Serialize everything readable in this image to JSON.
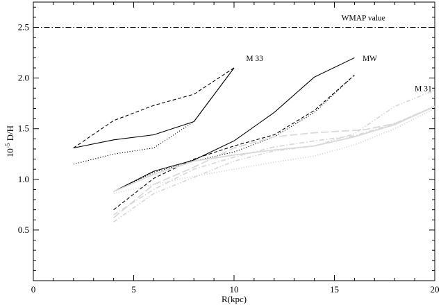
{
  "chart_data": {
    "type": "line",
    "title": "",
    "xlabel": "R(kpc)",
    "ylabel": "10^-5 D/H",
    "ylabel_prefix": "10",
    "ylabel_exponent": "-5",
    "ylabel_suffix": " D/H",
    "xlim": [
      0,
      20
    ],
    "ylim": [
      0,
      2.75
    ],
    "xticks": [
      0,
      5,
      10,
      15,
      20
    ],
    "yticks": [
      0.5,
      1.0,
      1.5,
      2.0,
      2.5
    ],
    "xtick_labels": [
      "0",
      "5",
      "10",
      "15",
      "20"
    ],
    "ytick_labels": [
      "0.5",
      "1.0",
      "1.5",
      "2.0",
      "2.5"
    ],
    "grid": false,
    "reference_line": {
      "y": 2.5,
      "label": "WMAP value",
      "color": "#000000",
      "style": "dashdot"
    },
    "annotations": [
      {
        "text": "M 33",
        "x": 10.6,
        "y": 2.17
      },
      {
        "text": "MW",
        "x": 16.4,
        "y": 2.17
      },
      {
        "text": "M 31",
        "x": 19.0,
        "y": 1.87
      }
    ],
    "series": [
      {
        "group": "M 33",
        "color": "#000000",
        "style": "solid",
        "x": [
          2,
          4,
          6,
          8,
          10
        ],
        "y": [
          1.31,
          1.39,
          1.44,
          1.57,
          2.1
        ]
      },
      {
        "group": "M 33",
        "color": "#000000",
        "style": "dashed",
        "x": [
          2,
          4,
          6,
          8,
          10
        ],
        "y": [
          1.31,
          1.58,
          1.73,
          1.84,
          2.1
        ]
      },
      {
        "group": "M 33",
        "color": "#000000",
        "style": "dotted",
        "x": [
          2,
          4,
          6,
          8,
          10
        ],
        "y": [
          1.15,
          1.25,
          1.31,
          1.57,
          2.1
        ]
      },
      {
        "group": "MW",
        "color": "#000000",
        "style": "solid",
        "x": [
          4,
          6,
          8,
          10,
          12,
          14,
          16
        ],
        "y": [
          0.88,
          1.08,
          1.19,
          1.38,
          1.66,
          2.01,
          2.2
        ]
      },
      {
        "group": "MW",
        "color": "#000000",
        "style": "dashed",
        "x": [
          4,
          6,
          8,
          10,
          12,
          14,
          16
        ],
        "y": [
          0.7,
          1.01,
          1.2,
          1.33,
          1.44,
          1.68,
          2.03
        ]
      },
      {
        "group": "MW",
        "color": "#000000",
        "style": "dotted",
        "x": [
          4,
          6,
          8,
          10,
          12,
          14,
          16
        ],
        "y": [
          0.88,
          1.07,
          1.18,
          1.27,
          1.42,
          1.66,
          2.03
        ]
      },
      {
        "group": "M 31",
        "color": "#d9d9d9",
        "style": "solid",
        "x": [
          4,
          6,
          8,
          10,
          12,
          14,
          16,
          18,
          20
        ],
        "y": [
          0.88,
          1.05,
          1.18,
          1.24,
          1.29,
          1.33,
          1.42,
          1.54,
          1.72
        ]
      },
      {
        "group": "M 31",
        "color": "#d9d9d9",
        "style": "longdash",
        "x": [
          4,
          6,
          8,
          10,
          12,
          14,
          16.5,
          18,
          20
        ],
        "y": [
          0.62,
          0.95,
          1.12,
          1.31,
          1.42,
          1.46,
          1.49,
          1.55,
          1.72
        ]
      },
      {
        "group": "M 31",
        "color": "#d9d9d9",
        "style": "dashdot",
        "x": [
          4,
          6,
          8,
          10,
          12,
          14,
          16,
          18,
          20
        ],
        "y": [
          0.65,
          0.9,
          1.1,
          1.22,
          1.32,
          1.38,
          1.43,
          1.55,
          1.72
        ]
      },
      {
        "group": "M 31",
        "color": "#d9d9d9",
        "style": "dashdotdot",
        "x": [
          4,
          6,
          8,
          10,
          12,
          14,
          16,
          18,
          20
        ],
        "y": [
          0.58,
          0.86,
          1.02,
          1.18,
          1.28,
          1.33,
          1.45,
          1.72,
          1.88
        ]
      },
      {
        "group": "M 31",
        "color": "#d9d9d9",
        "style": "dotted",
        "x": [
          4,
          6,
          8,
          10,
          12,
          14,
          16,
          18,
          20
        ],
        "y": [
          0.86,
          0.95,
          1.03,
          1.1,
          1.17,
          1.23,
          1.34,
          1.5,
          1.7
        ]
      }
    ]
  }
}
